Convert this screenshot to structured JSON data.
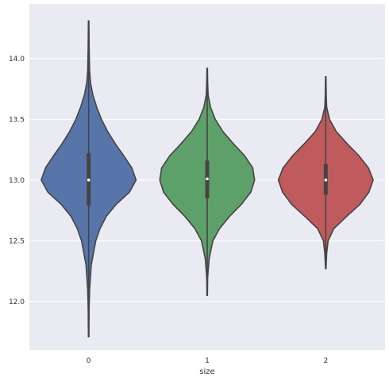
{
  "chart_data": {
    "type": "violin",
    "xlabel": "size",
    "ylabel": "",
    "categories": [
      "0",
      "1",
      "2"
    ],
    "ylim": [
      11.6,
      14.45
    ],
    "yticks": [
      12.0,
      12.5,
      13.0,
      13.5,
      14.0
    ],
    "ytick_labels": [
      "12.0",
      "12.5",
      "13.0",
      "13.5",
      "14.0"
    ],
    "grid": true,
    "background": "#eaeaf2",
    "grid_color": "#ffffff",
    "outline_color": "#444444",
    "violins": [
      {
        "category": "0",
        "color": "#5875aa",
        "min": 11.71,
        "max": 14.31,
        "q1": 12.79,
        "median": 13.0,
        "q3": 13.22,
        "profile": [
          [
            11.71,
            0.005
          ],
          [
            11.95,
            0.01
          ],
          [
            12.1,
            0.02
          ],
          [
            12.3,
            0.055
          ],
          [
            12.5,
            0.15
          ],
          [
            12.6,
            0.24
          ],
          [
            12.7,
            0.37
          ],
          [
            12.8,
            0.58
          ],
          [
            12.9,
            0.86
          ],
          [
            13.0,
            1.0
          ],
          [
            13.1,
            0.91
          ],
          [
            13.2,
            0.74
          ],
          [
            13.3,
            0.56
          ],
          [
            13.4,
            0.4
          ],
          [
            13.5,
            0.27
          ],
          [
            13.6,
            0.17
          ],
          [
            13.7,
            0.09
          ],
          [
            13.8,
            0.04
          ],
          [
            13.9,
            0.02
          ],
          [
            14.1,
            0.01
          ],
          [
            14.31,
            0.005
          ]
        ]
      },
      {
        "category": "1",
        "color": "#5ea06a",
        "min": 12.05,
        "max": 13.92,
        "q1": 12.85,
        "median": 13.01,
        "q3": 13.16,
        "profile": [
          [
            12.05,
            0.005
          ],
          [
            12.2,
            0.01
          ],
          [
            12.35,
            0.04
          ],
          [
            12.5,
            0.12
          ],
          [
            12.6,
            0.26
          ],
          [
            12.7,
            0.47
          ],
          [
            12.8,
            0.72
          ],
          [
            12.9,
            0.92
          ],
          [
            13.0,
            1.0
          ],
          [
            13.1,
            0.96
          ],
          [
            13.2,
            0.79
          ],
          [
            13.3,
            0.55
          ],
          [
            13.4,
            0.33
          ],
          [
            13.5,
            0.17
          ],
          [
            13.6,
            0.07
          ],
          [
            13.7,
            0.02
          ],
          [
            13.8,
            0.01
          ],
          [
            13.92,
            0.005
          ]
        ]
      },
      {
        "category": "2",
        "color": "#c05b5d",
        "min": 12.27,
        "max": 13.85,
        "q1": 12.88,
        "median": 13.0,
        "q3": 13.13,
        "profile": [
          [
            12.27,
            0.005
          ],
          [
            12.4,
            0.02
          ],
          [
            12.5,
            0.05
          ],
          [
            12.6,
            0.17
          ],
          [
            12.7,
            0.44
          ],
          [
            12.8,
            0.72
          ],
          [
            12.9,
            0.91
          ],
          [
            13.0,
            1.0
          ],
          [
            13.1,
            0.9
          ],
          [
            13.2,
            0.7
          ],
          [
            13.3,
            0.45
          ],
          [
            13.4,
            0.22
          ],
          [
            13.5,
            0.08
          ],
          [
            13.6,
            0.02
          ],
          [
            13.7,
            0.01
          ],
          [
            13.85,
            0.005
          ]
        ]
      }
    ]
  }
}
